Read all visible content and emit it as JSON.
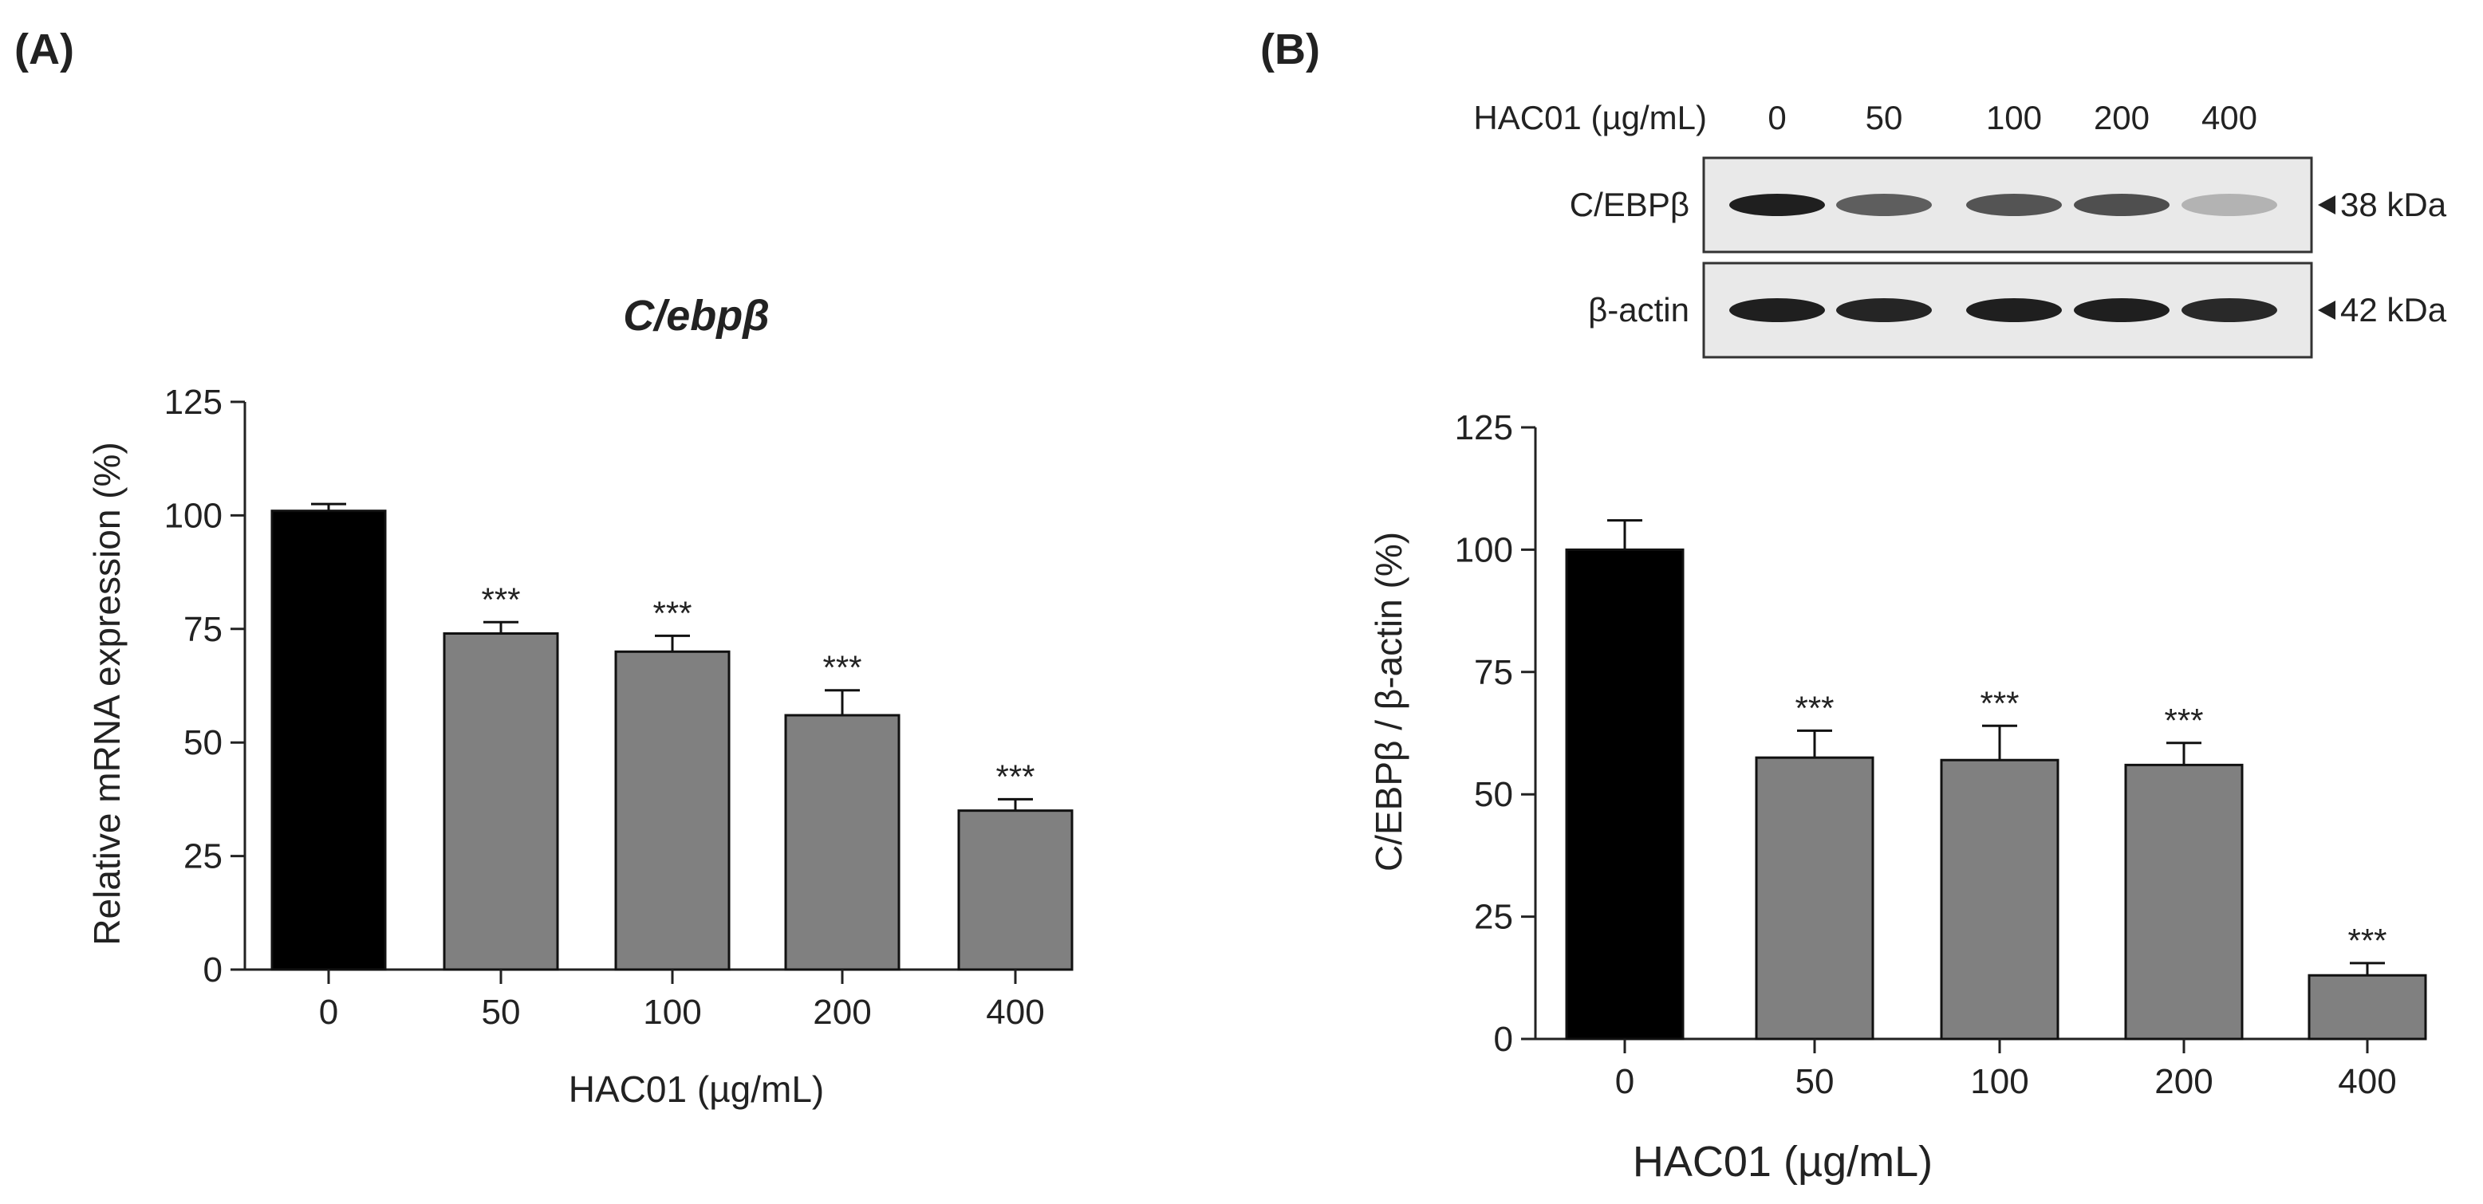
{
  "panel_a": {
    "label": "(A)"
  },
  "panel_b": {
    "label": "(B)"
  },
  "blot": {
    "header_label": "HAC01 (µg/mL)",
    "lanes": [
      "0",
      "50",
      "100",
      "200",
      "400"
    ],
    "rows": [
      {
        "name": "C/EBPβ",
        "marker": "38 kDa",
        "intensities": [
          0.95,
          0.65,
          0.7,
          0.72,
          0.25
        ]
      },
      {
        "name": "β-actin",
        "marker": "42 kDa",
        "intensities": [
          0.95,
          0.92,
          0.95,
          0.95,
          0.9
        ]
      }
    ]
  },
  "colors": {
    "control_bar": "#000000",
    "treated_bar": "#808080",
    "axis": "#222222"
  },
  "chart_data": [
    {
      "type": "bar",
      "title": "C/ebpβ",
      "xlabel": "HAC01 (µg/mL)",
      "ylabel": "Relative mRNA expression (%)",
      "categories": [
        "0",
        "50",
        "100",
        "200",
        "400"
      ],
      "values": [
        101,
        74,
        70,
        56,
        35
      ],
      "errors": [
        1.5,
        2.5,
        3.5,
        5.5,
        2.5
      ],
      "significance": [
        "",
        "***",
        "***",
        "***",
        "***"
      ],
      "ylim": [
        0,
        125
      ],
      "yticks": [
        0,
        25,
        50,
        75,
        100,
        125
      ],
      "grid": false
    },
    {
      "type": "bar",
      "title": "",
      "xlabel": "HAC01 (µg/mL)",
      "ylabel": "C/EBPβ / β-actin (%)",
      "categories": [
        "0",
        "50",
        "100",
        "200",
        "400"
      ],
      "values": [
        100,
        57.5,
        57,
        56,
        13
      ],
      "errors": [
        6,
        5.5,
        7,
        4.5,
        2.5
      ],
      "significance": [
        "",
        "***",
        "***",
        "***",
        "***"
      ],
      "ylim": [
        0,
        125
      ],
      "yticks": [
        0,
        25,
        50,
        75,
        100,
        125
      ],
      "grid": false
    }
  ]
}
